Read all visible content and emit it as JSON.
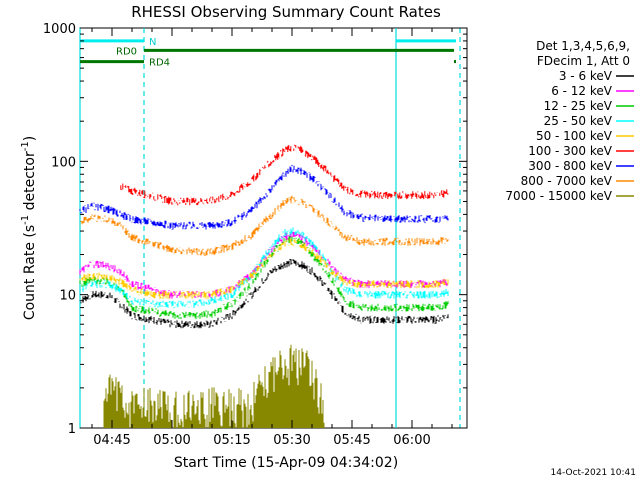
{
  "chart_data": {
    "type": "line",
    "title": "RHESSI Observing Summary Count Rates",
    "xlabel": "Start Time (15-Apr-09 04:34:02)",
    "ylabel_prefix": "Count Rate (s",
    "ylabel_sup1": "-1",
    "ylabel_mid": " detector",
    "ylabel_sup2": "-1",
    "ylabel_suffix": ")",
    "yscale": "log",
    "ylim": [
      1,
      1000
    ],
    "xlim_minutes": [
      37,
      104
    ],
    "x_ticks": [
      {
        "t": 45,
        "label": "04:45"
      },
      {
        "t": 60,
        "label": "05:00"
      },
      {
        "t": 75,
        "label": "05:15"
      },
      {
        "t": 90,
        "label": "05:30"
      },
      {
        "t": 105,
        "label": "05:45"
      },
      {
        "t": 120,
        "label": "06:00"
      }
    ],
    "y_ticks": [
      {
        "v": 1,
        "label": "1"
      },
      {
        "v": 10,
        "label": "10"
      },
      {
        "v": 100,
        "label": "100"
      },
      {
        "v": 1000,
        "label": "1000"
      }
    ],
    "legend_header": [
      "Det 1,3,4,5,6,9,",
      "FDecim 1, Att 0"
    ],
    "legend_position": "right",
    "series": [
      {
        "name": "3 - 6 keV",
        "color": "#000000",
        "x": [
          37,
          40,
          44,
          47,
          50,
          55,
          60,
          65,
          70,
          75,
          80,
          85,
          88,
          90,
          92,
          95,
          100,
          103,
          107,
          112,
          118,
          122,
          126,
          129
        ],
        "y": [
          9,
          10,
          10,
          8.5,
          7,
          6.5,
          6,
          6,
          6,
          7,
          10,
          15,
          17,
          17.5,
          17,
          15,
          10,
          7.5,
          6.5,
          6.5,
          6.5,
          6.5,
          6.5,
          7
        ]
      },
      {
        "name": "6 - 12 keV",
        "color": "#ff00ff",
        "x": [
          37,
          40,
          44,
          47,
          50,
          55,
          60,
          65,
          70,
          75,
          80,
          85,
          88,
          90,
          92,
          95,
          100,
          103,
          107,
          112,
          118,
          122,
          126,
          129
        ],
        "y": [
          15,
          17,
          16.5,
          15,
          12,
          11,
          10,
          10,
          10,
          11,
          14,
          22,
          27,
          28,
          27,
          23,
          16,
          13,
          12,
          12,
          12,
          12,
          12,
          12.5
        ]
      },
      {
        "name": "12 - 25 keV",
        "color": "#00cc00",
        "x": [
          37,
          40,
          44,
          47,
          50,
          55,
          60,
          65,
          70,
          75,
          80,
          85,
          88,
          90,
          92,
          95,
          100,
          103,
          107,
          112,
          118,
          122,
          126,
          129
        ],
        "y": [
          12,
          13,
          12.5,
          11,
          8,
          7.5,
          7,
          7,
          7.2,
          8.5,
          12,
          20,
          25,
          26,
          25,
          20,
          13,
          9,
          8,
          8,
          8,
          8,
          8,
          8.5
        ]
      },
      {
        "name": "25 - 50 keV",
        "color": "#00ffff",
        "x": [
          37,
          40,
          44,
          47,
          50,
          55,
          60,
          65,
          70,
          75,
          80,
          85,
          88,
          90,
          92,
          95,
          100,
          103,
          107,
          112,
          118,
          122,
          126,
          129
        ],
        "y": [
          11,
          12,
          12,
          11,
          9,
          8.5,
          8.5,
          8.5,
          9,
          10,
          14,
          23,
          29,
          30,
          29,
          24,
          15,
          11,
          10,
          10,
          10,
          10,
          10,
          10.5
        ]
      },
      {
        "name": "50 - 100 keV",
        "color": "#ffcc00",
        "x": [
          37,
          40,
          44,
          47,
          50,
          55,
          60,
          65,
          70,
          75,
          80,
          85,
          88,
          90,
          92,
          95,
          100,
          103,
          107,
          112,
          118,
          122,
          126,
          129
        ],
        "y": [
          13,
          14,
          13.5,
          12.5,
          11,
          10,
          10,
          10,
          10,
          11,
          14,
          20,
          24,
          25,
          24,
          21,
          15,
          12.5,
          12,
          12,
          12,
          12,
          12,
          12.5
        ]
      },
      {
        "name": "100 - 300 keV",
        "color": "#ff0000",
        "x": [
          47.2,
          50,
          55,
          60,
          65,
          70,
          75,
          80,
          85,
          88,
          90,
          92,
          95,
          100,
          103,
          107,
          112,
          118,
          122,
          126,
          129
        ],
        "y": [
          65,
          60,
          55,
          50,
          50,
          51,
          56,
          72,
          100,
          120,
          128,
          124,
          108,
          77,
          62,
          57,
          56,
          56,
          56,
          56,
          58
        ]
      },
      {
        "name": "300 - 800 keV",
        "color": "#0000ff",
        "x": [
          37,
          40,
          44,
          47,
          50,
          55,
          60,
          65,
          70,
          75,
          80,
          85,
          88,
          90,
          92,
          95,
          100,
          103,
          107,
          112,
          118,
          122,
          126,
          129
        ],
        "y": [
          42,
          46,
          44,
          40,
          37,
          35,
          33,
          33,
          33,
          35,
          43,
          62,
          80,
          88,
          86,
          75,
          53,
          42,
          38,
          37,
          37,
          37,
          37,
          38
        ]
      },
      {
        "name": "800 - 7000 keV",
        "color": "#ff8800",
        "x": [
          37,
          40,
          44,
          47,
          50,
          55,
          60,
          65,
          70,
          75,
          80,
          85,
          88,
          90,
          92,
          95,
          100,
          103,
          107,
          112,
          118,
          122,
          126,
          129
        ],
        "y": [
          35,
          38,
          36.5,
          33,
          27,
          24,
          22,
          21,
          21,
          23,
          28,
          40,
          49,
          52,
          50,
          44,
          33,
          27,
          25,
          25,
          25,
          25,
          25,
          26
        ]
      },
      {
        "name": "7000 - 15000 keV",
        "color": "#888800",
        "x": [
          43,
          45,
          47,
          49,
          80,
          82,
          84,
          86,
          88,
          90,
          92,
          94,
          96,
          98
        ],
        "y": [
          1.5,
          2,
          2,
          1.5,
          1.5,
          2.2,
          2.6,
          2.9,
          3,
          3.2,
          3,
          2.8,
          2.2,
          1.5
        ]
      }
    ],
    "annotations": [
      {
        "type": "vertical_line",
        "style": "solid",
        "color": "#00dddd",
        "t": 37
      },
      {
        "type": "vertical_line",
        "style": "dashed",
        "color": "#00dddd",
        "t": 53
      },
      {
        "type": "vertical_line",
        "style": "solid",
        "color": "#00dddd",
        "t": 116
      },
      {
        "type": "vertical_line",
        "style": "dashed",
        "color": "#00dddd",
        "t": 132
      },
      {
        "type": "bar",
        "label": "N",
        "color": "#00eeee",
        "y": 800,
        "segments": [
          [
            37,
            53
          ],
          [
            116,
            131
          ]
        ]
      },
      {
        "type": "bar",
        "label": "RD0",
        "color": "#007700",
        "y": 680,
        "segments": [
          [
            53,
            130.5
          ]
        ]
      },
      {
        "type": "bar",
        "label": "RD4",
        "color": "#007700",
        "y": 560,
        "segments": [
          [
            37,
            53
          ],
          [
            130.5,
            131
          ]
        ]
      }
    ]
  },
  "footer_timestamp": "14-Oct-2021 10:41"
}
